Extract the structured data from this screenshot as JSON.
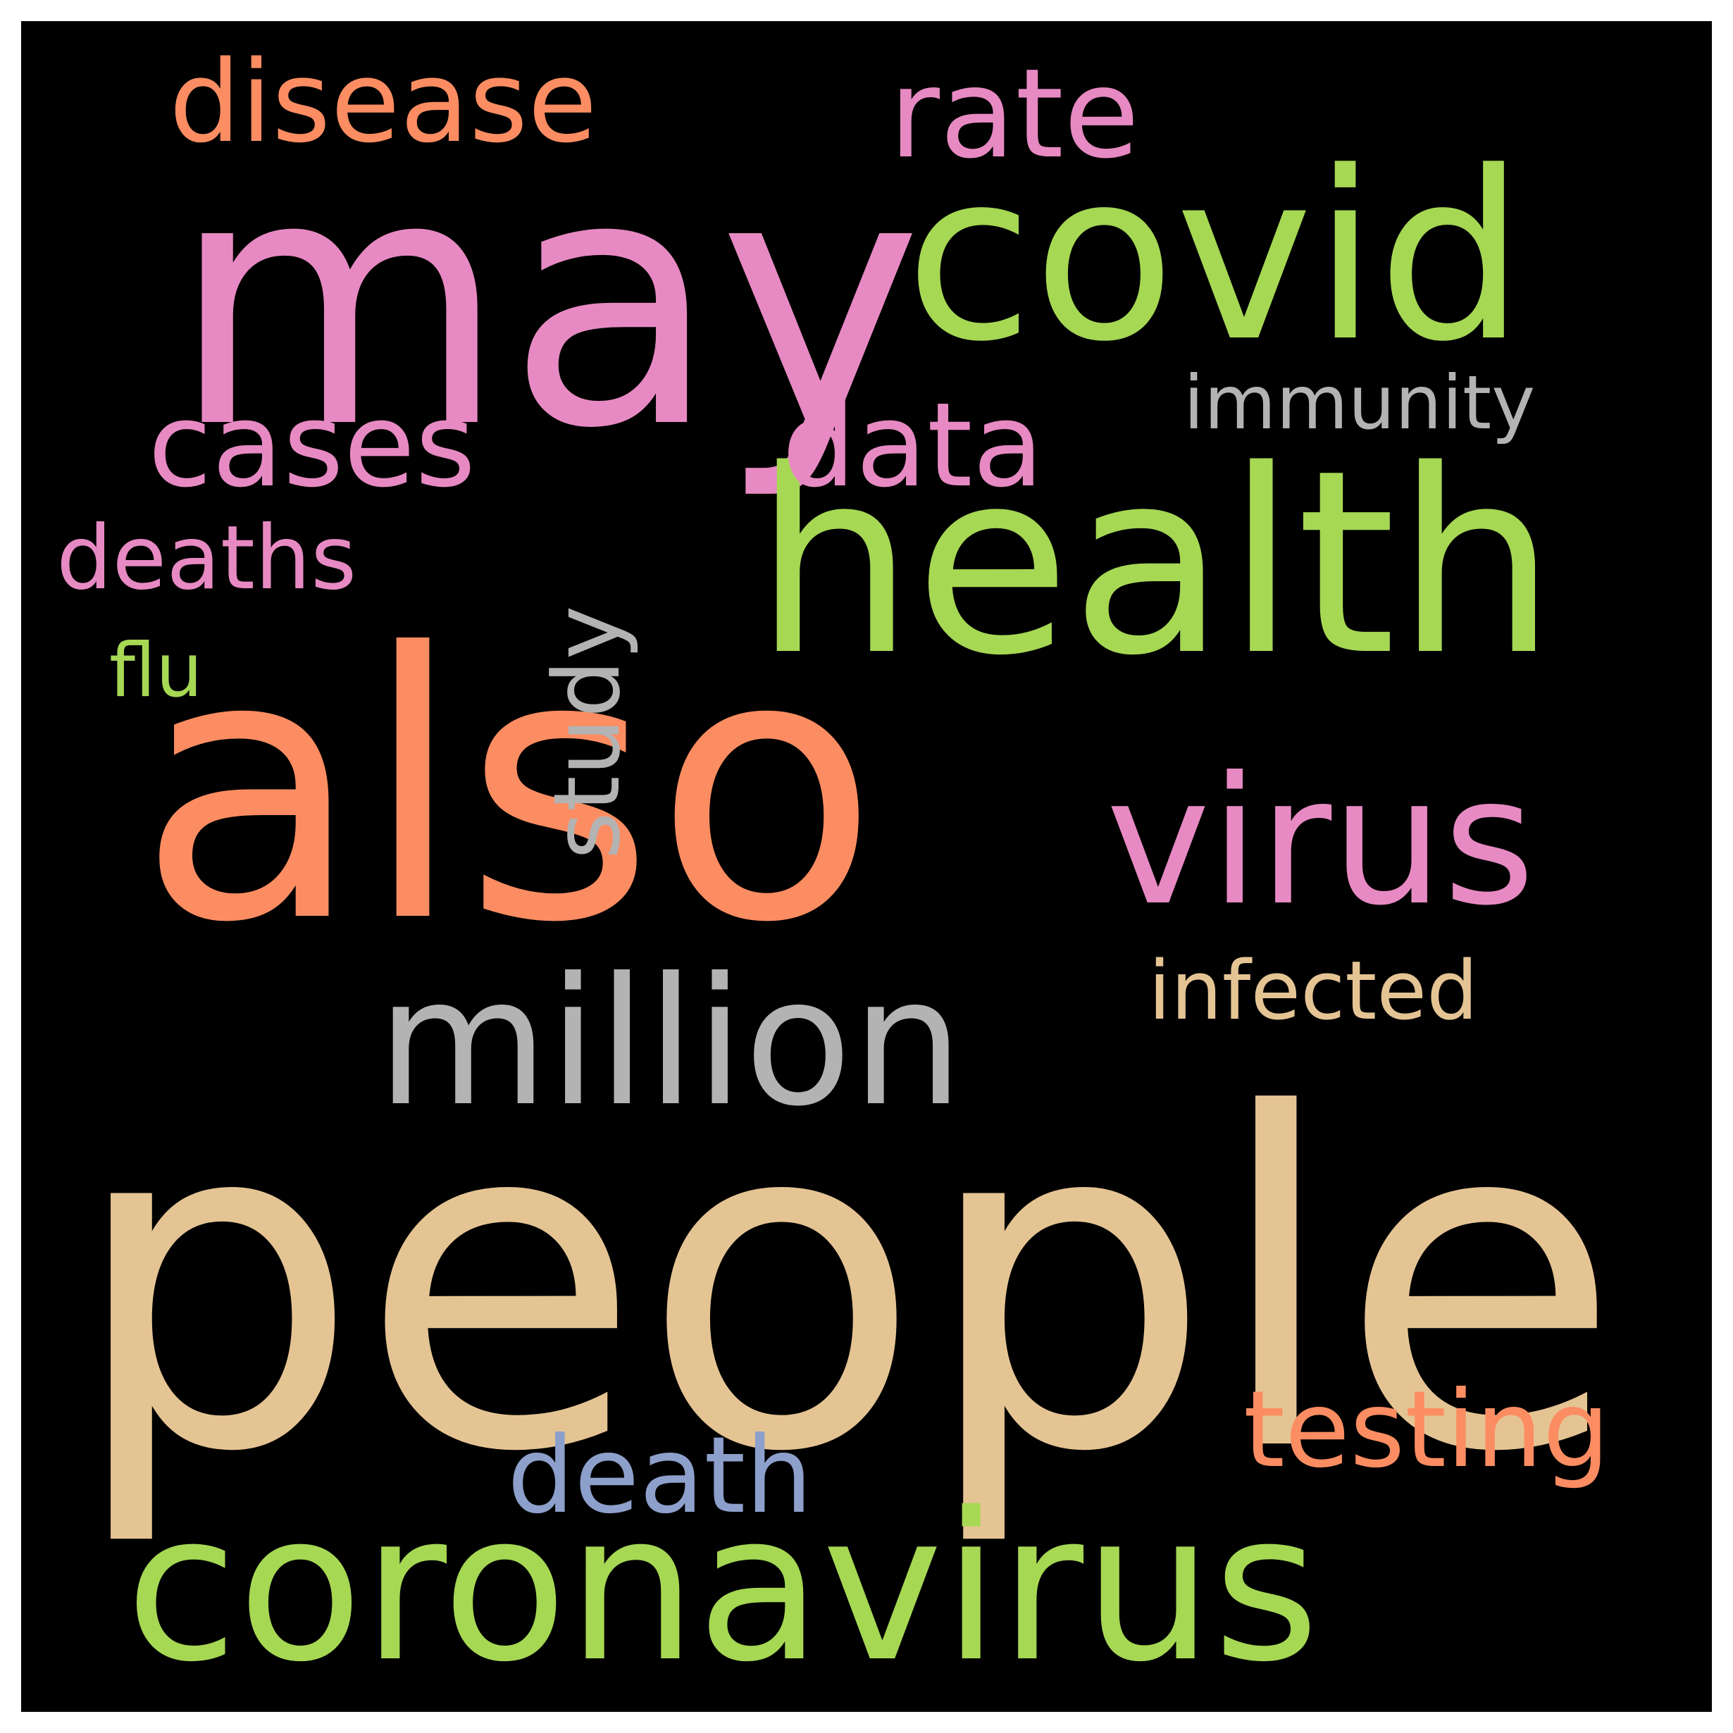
{
  "words": [
    {
      "text": "people",
      "color": "#e5c494"
    },
    {
      "text": "also",
      "color": "#fc8d62"
    },
    {
      "text": "may",
      "color": "#e78ac3"
    },
    {
      "text": "health",
      "color": "#a6d854"
    },
    {
      "text": "covid",
      "color": "#a6d854"
    },
    {
      "text": "coronavirus",
      "color": "#a6d854"
    },
    {
      "text": "virus",
      "color": "#e78ac3"
    },
    {
      "text": "million",
      "color": "#b3b3b3"
    },
    {
      "text": "rate",
      "color": "#e78ac3"
    },
    {
      "text": "disease",
      "color": "#fc8d62"
    },
    {
      "text": "cases",
      "color": "#e78ac3"
    },
    {
      "text": "data",
      "color": "#e78ac3"
    },
    {
      "text": "death",
      "color": "#8da0cb"
    },
    {
      "text": "testing",
      "color": "#fc8d62"
    },
    {
      "text": "deaths",
      "color": "#e78ac3"
    },
    {
      "text": "infected",
      "color": "#e5c494"
    },
    {
      "text": "immunity",
      "color": "#b3b3b3"
    },
    {
      "text": "flu",
      "color": "#a6d854"
    },
    {
      "text": "study",
      "color": "#b3b3b3"
    }
  ],
  "background": "#000000",
  "frame": "#ffffff"
}
